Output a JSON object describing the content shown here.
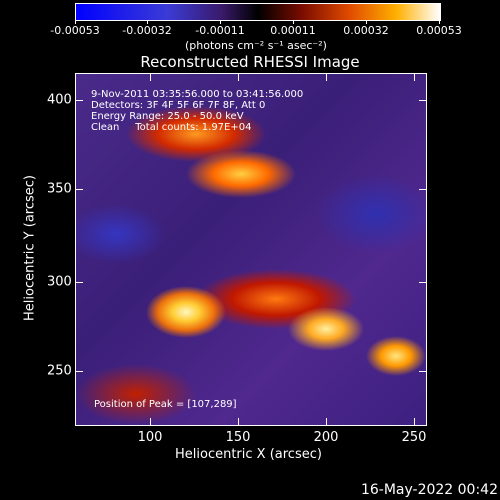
{
  "colorbar": {
    "labels": [
      "-0.00053",
      "-0.00032",
      "-0.00011",
      "0.00011",
      "0.00032",
      "0.00053"
    ],
    "units": "(photons cm⁻² s⁻¹ asec⁻²)"
  },
  "title": "Reconstructed RHESSI Image",
  "info": {
    "time_range": "9-Nov-2011 03:35:56.000 to 03:41:56.000",
    "detectors": "Detectors: 3F 4F 5F 6F 7F 8F, Att 0",
    "energy": "Energy Range: 25.0 - 50.0 keV",
    "clean": "Clean     Total counts: 1.97E+04"
  },
  "peak": "Position of Peak = [107,289]",
  "axes": {
    "x_title": "Heliocentric X (arcsec)",
    "y_title": "Heliocentric Y (arcsec)",
    "x_ticks": [
      "100",
      "150",
      "200",
      "250"
    ],
    "y_ticks": [
      "400",
      "350",
      "300",
      "250"
    ]
  },
  "timestamp": "16-May-2022 00:42"
}
